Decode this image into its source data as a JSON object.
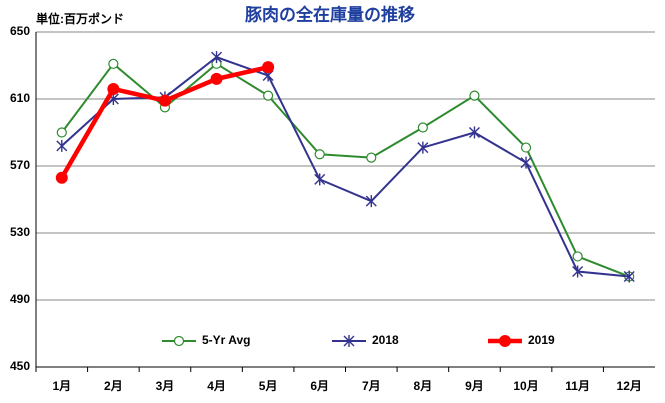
{
  "chart_data": {
    "type": "line",
    "title": "豚肉の全在庫量の推移",
    "y_label": "単位:百万ポンド",
    "categories": [
      "1月",
      "2月",
      "3月",
      "4月",
      "5月",
      "6月",
      "7月",
      "8月",
      "9月",
      "10月",
      "11月",
      "12月"
    ],
    "series": [
      {
        "name": "5-Yr Avg",
        "color": "#2e8b2e",
        "marker": "open-circle",
        "values": [
          590,
          631,
          605,
          631,
          612,
          577,
          575,
          593,
          612,
          581,
          516,
          504
        ]
      },
      {
        "name": "2018",
        "color": "#33338f",
        "marker": "star",
        "values": [
          582,
          610,
          611,
          635,
          624,
          562,
          549,
          581,
          590,
          572,
          507,
          504
        ]
      },
      {
        "name": "2019",
        "color": "#ff0000",
        "marker": "filled-circle",
        "values": [
          563,
          616,
          609,
          622,
          629,
          null,
          null,
          null,
          null,
          null,
          null,
          null
        ]
      }
    ],
    "ylim": [
      450,
      650
    ],
    "yticks": [
      450,
      490,
      530,
      570,
      610,
      650
    ],
    "grid": true,
    "legend": "bottom"
  }
}
